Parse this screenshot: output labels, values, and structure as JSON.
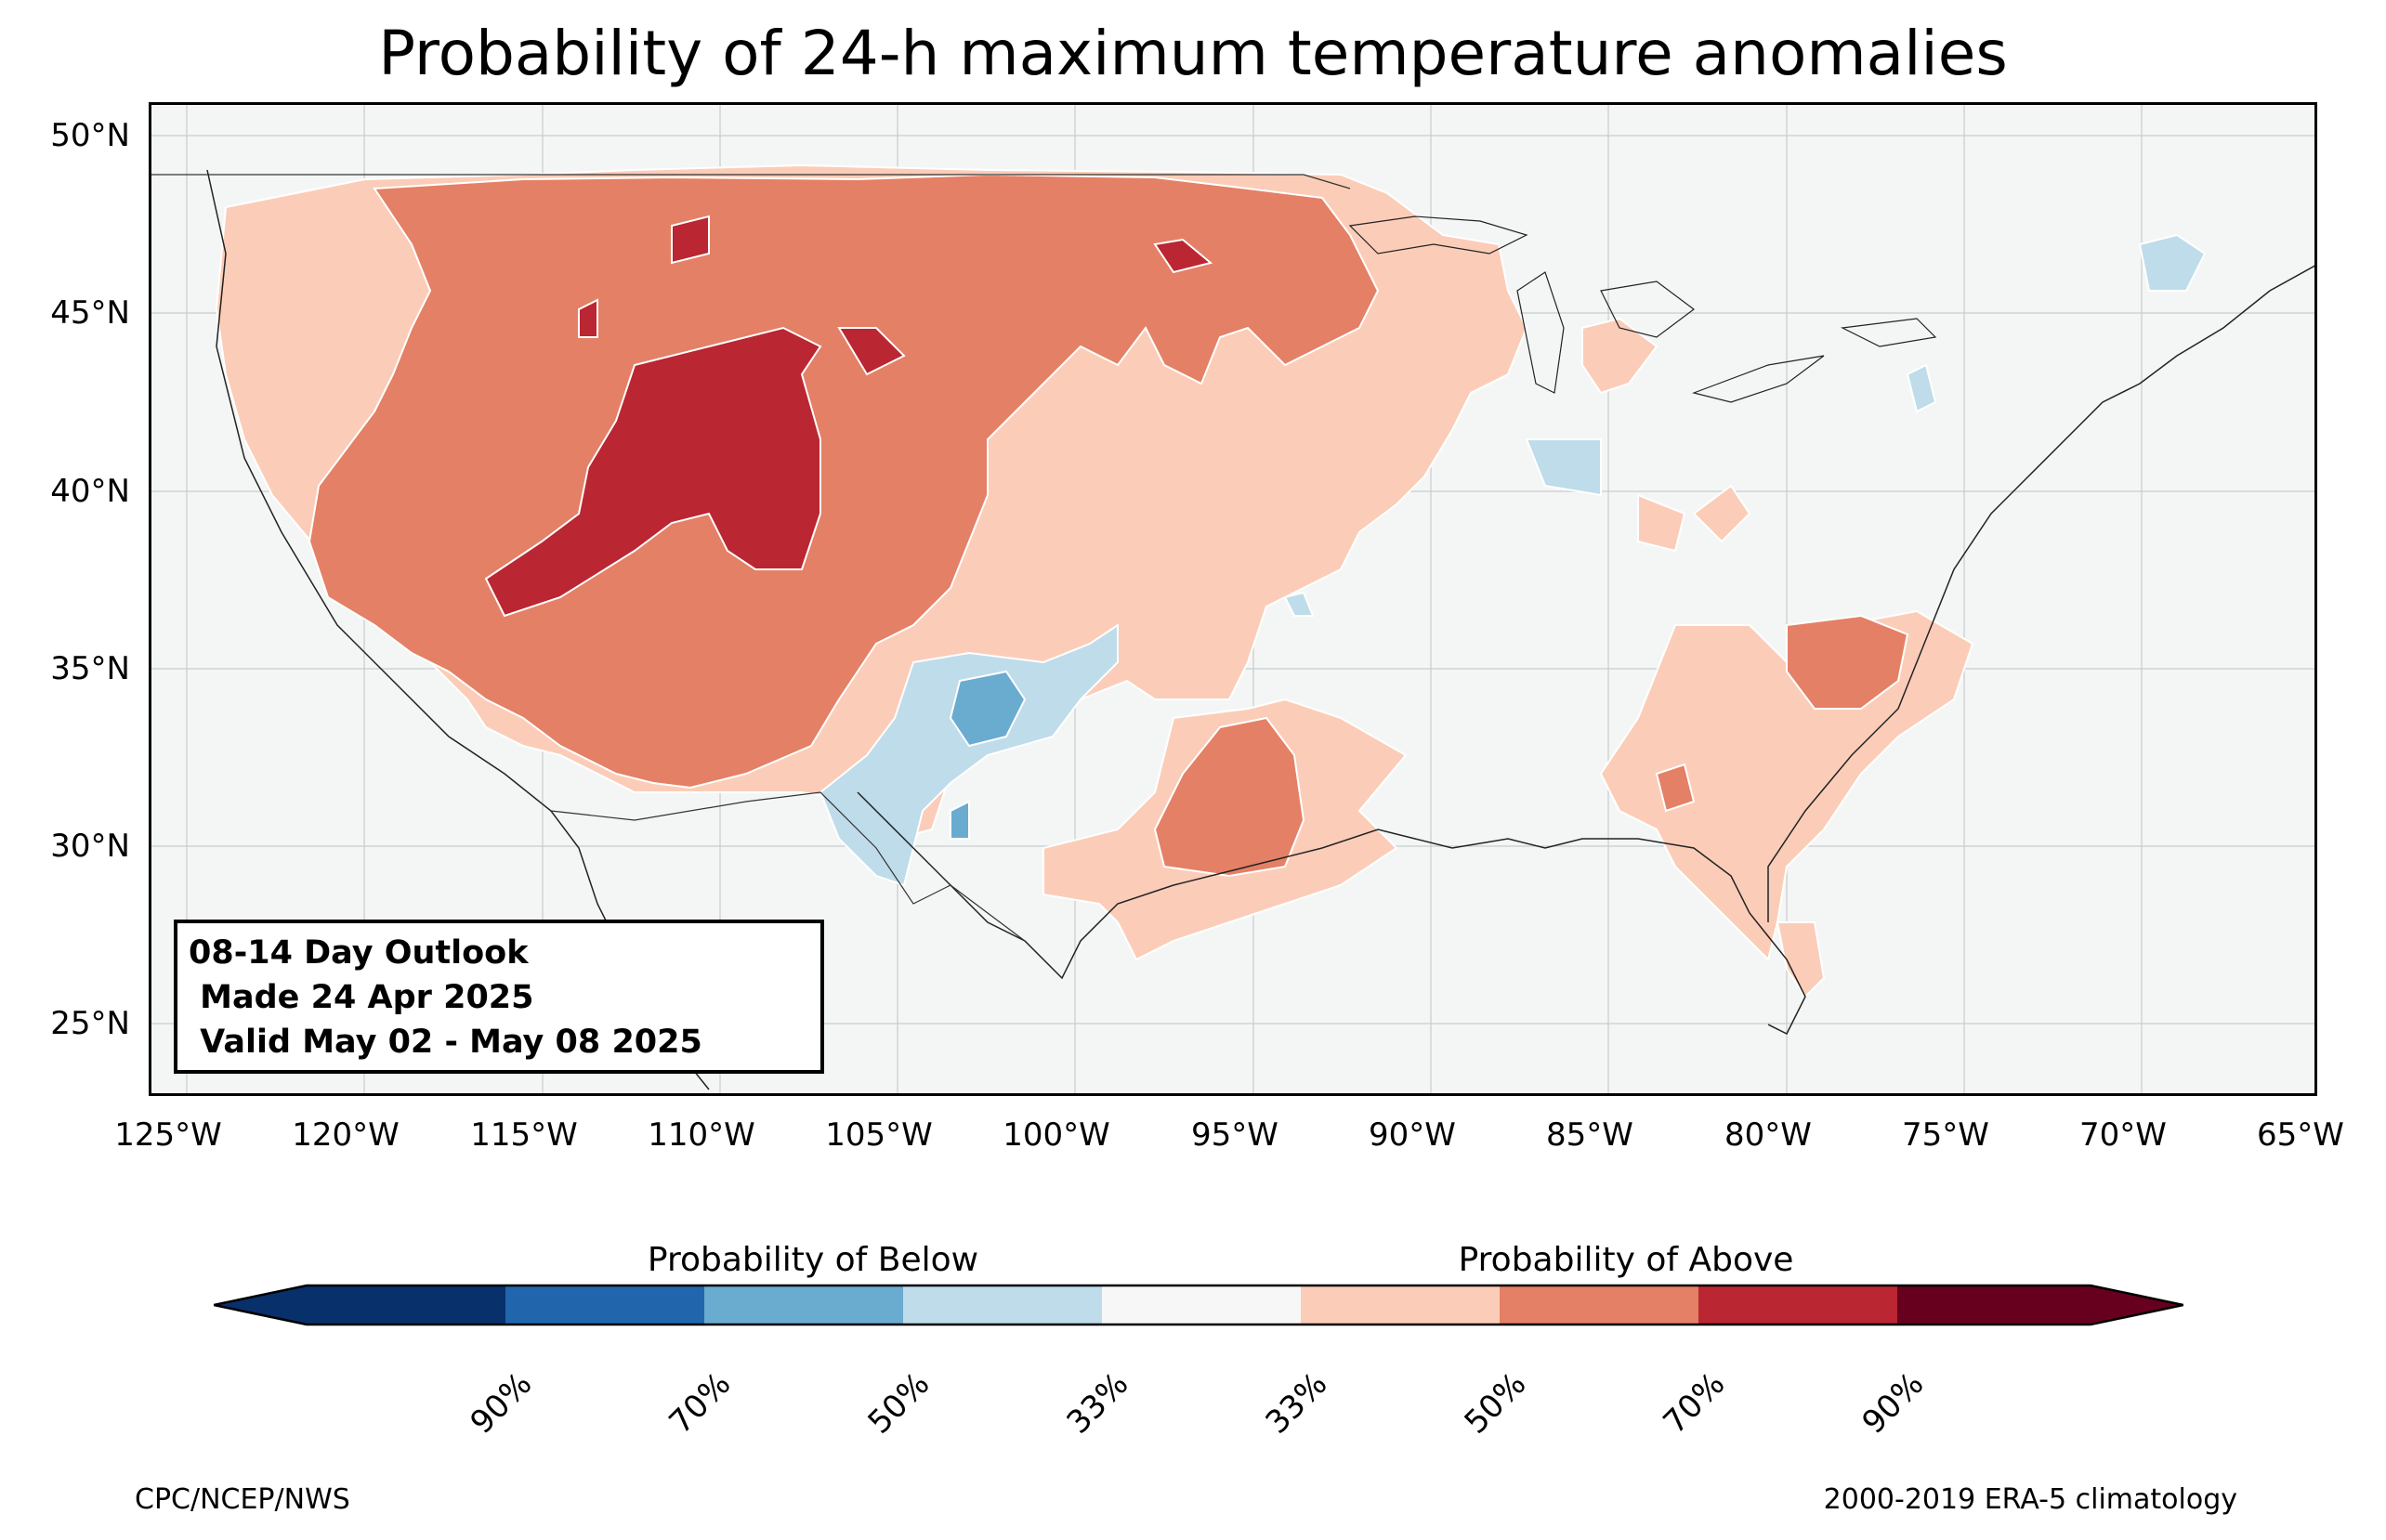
{
  "title": "Probability of 24-h maximum temperature anomalies",
  "map": {
    "lat_labels": [
      "50°N",
      "45°N",
      "40°N",
      "35°N",
      "30°N",
      "25°N"
    ],
    "lon_labels": [
      "125°W",
      "120°W",
      "115°W",
      "110°W",
      "105°W",
      "100°W",
      "95°W",
      "90°W",
      "85°W",
      "80°W",
      "75°W",
      "70°W",
      "65°W"
    ],
    "extent": {
      "lon_min": -126,
      "lon_max": -65,
      "lat_min": 23,
      "lat_max": 51
    },
    "colors": {
      "background": "#f4f6f6",
      "above_33": "#fbcdb8",
      "above_50": "#e48066",
      "above_70": "#ba2632",
      "below_33": "#bfdcea",
      "below_50": "#6aabd0"
    }
  },
  "outlook_box": {
    "line1": "08-14 Day Outlook",
    "line2": " Made 24 Apr 2025",
    "line3": " Valid May 02 - May 08 2025"
  },
  "colorbar": {
    "below_title": "Probability of Below",
    "above_title": "Probability of Above",
    "colors": [
      "#08306b",
      "#2166ac",
      "#6aabd0",
      "#bfdcea",
      "#f7f7f7",
      "#fbcdb8",
      "#e48066",
      "#ba2632",
      "#67001f"
    ],
    "ticks": [
      "90%",
      "70%",
      "50%",
      "33%",
      "33%",
      "50%",
      "70%",
      "90%"
    ]
  },
  "credits": {
    "left": "CPC/NCEP/NWS",
    "right": "2000-2019 ERA-5 climatology"
  }
}
